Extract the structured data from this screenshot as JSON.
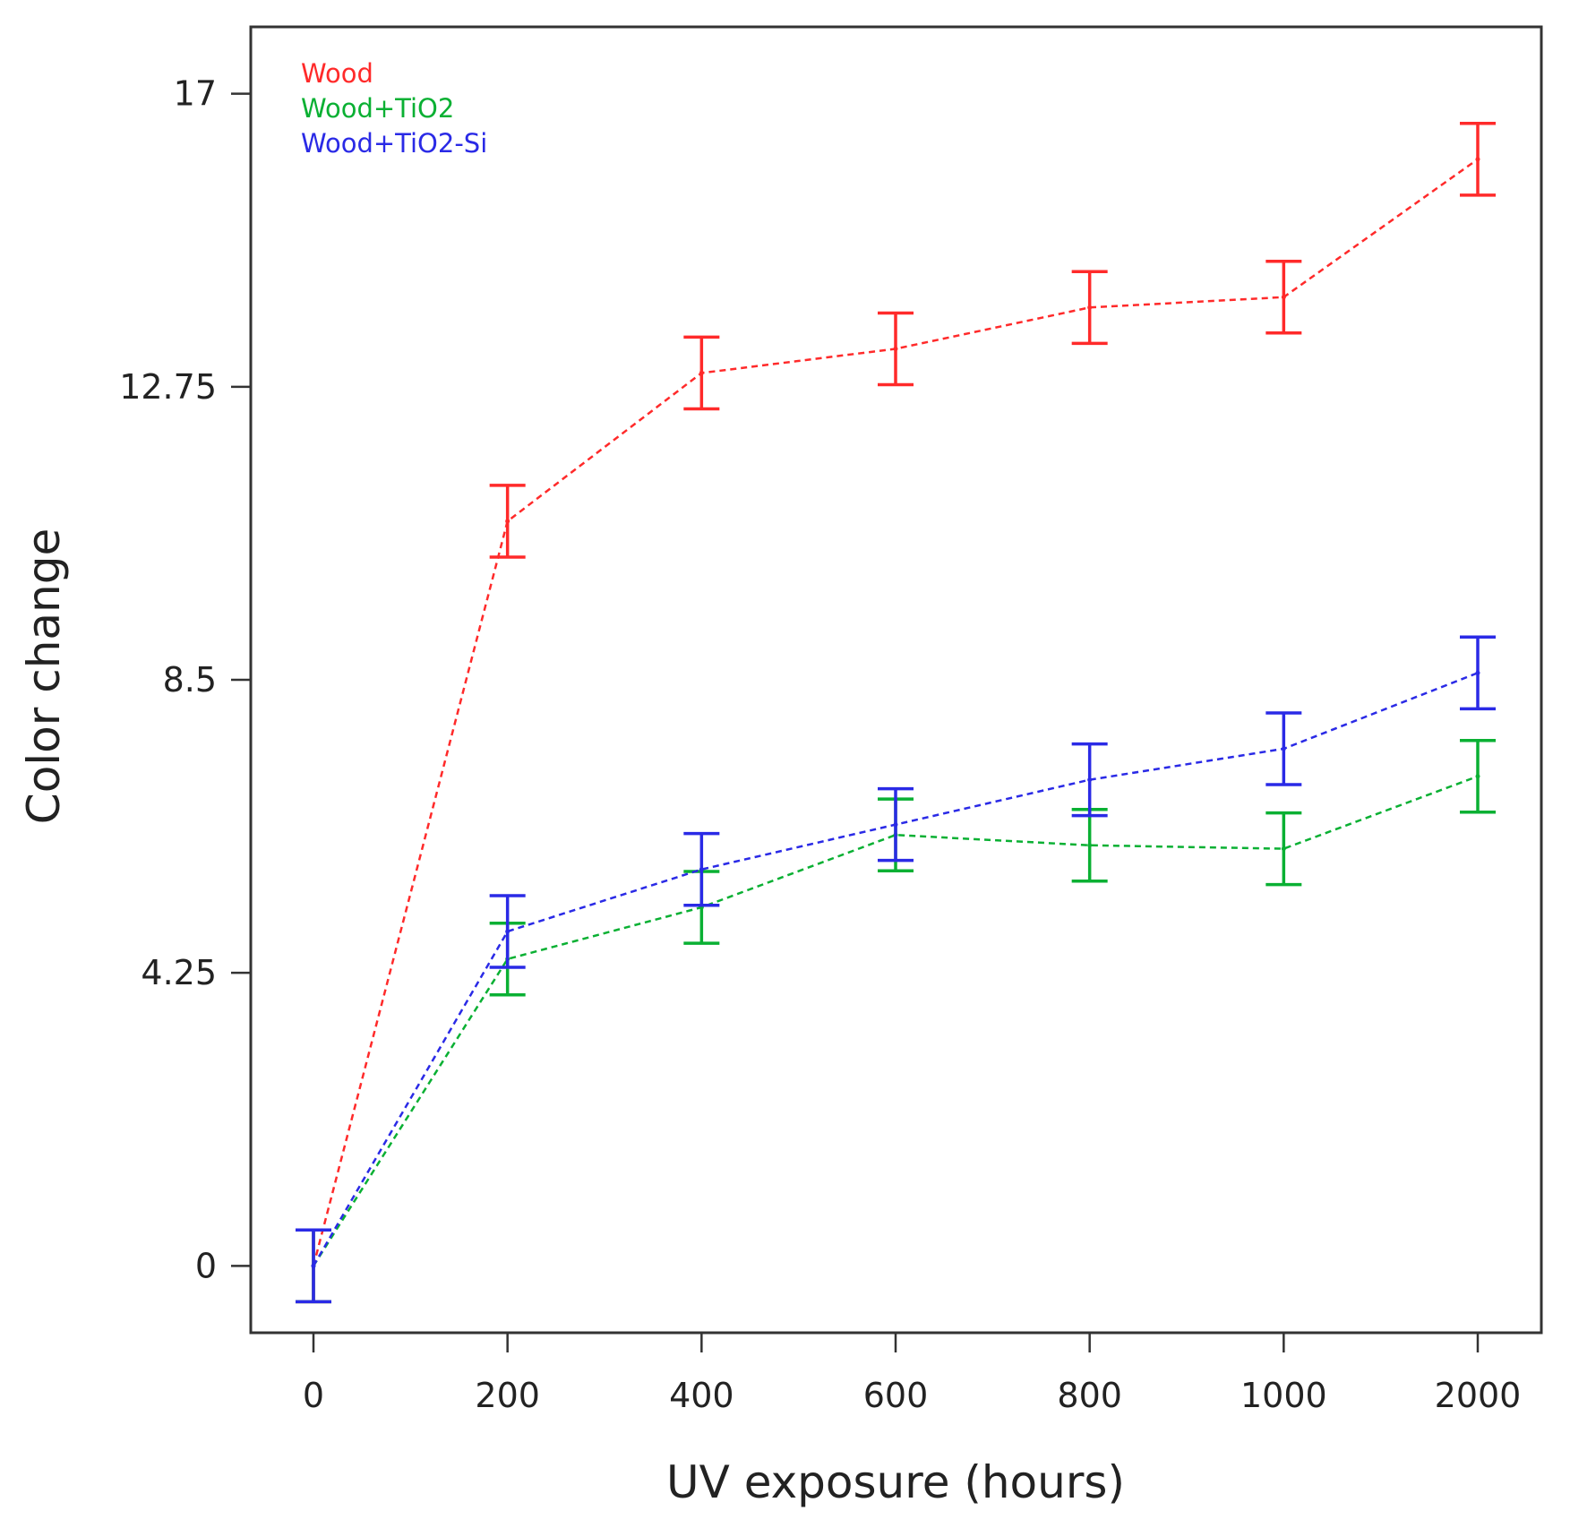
{
  "chart_data": {
    "type": "line",
    "title": "",
    "xlabel": "UV exposure (hours)",
    "ylabel": "Color change",
    "categories": [
      "0",
      "200",
      "400",
      "600",
      "800",
      "1000",
      "2000"
    ],
    "yticks": [
      {
        "value": 0,
        "label": "0"
      },
      {
        "value": 4.25,
        "label": "4.25"
      },
      {
        "value": 8.5,
        "label": "8.5"
      },
      {
        "value": 12.75,
        "label": "12.75"
      },
      {
        "value": 17,
        "label": "17"
      }
    ],
    "ylim": [
      -0.97,
      17.97
    ],
    "grid": false,
    "legend_position": "top-left",
    "series": [
      {
        "name": "Wood",
        "color": "#ff2a2a",
        "values": [
          0,
          10.8,
          12.95,
          13.3,
          13.9,
          14.05,
          16.05
        ],
        "error": [
          0.52,
          0.52,
          0.52,
          0.52,
          0.52,
          0.52,
          0.52
        ]
      },
      {
        "name": "Wood+TiO2",
        "color": "#0ab033",
        "values": [
          0,
          4.45,
          5.2,
          6.25,
          6.1,
          6.05,
          7.1
        ],
        "error": [
          0.52,
          0.52,
          0.52,
          0.52,
          0.52,
          0.52,
          0.52
        ]
      },
      {
        "name": "Wood+TiO2-Si",
        "color": "#2a2ae6",
        "values": [
          0,
          4.85,
          5.75,
          6.4,
          7.05,
          7.5,
          8.6
        ],
        "error": [
          0.52,
          0.52,
          0.52,
          0.52,
          0.52,
          0.52,
          0.52
        ]
      }
    ]
  }
}
